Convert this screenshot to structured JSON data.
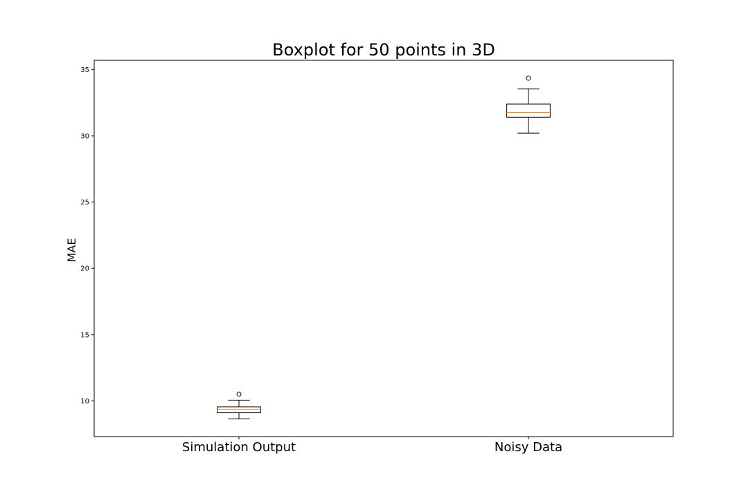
{
  "chart_data": {
    "type": "boxplot",
    "title": "Boxplot for 50 points in 3D",
    "xlabel": "",
    "ylabel": "MAE",
    "categories": [
      "Simulation Output",
      "Noisy Data"
    ],
    "ylim": [
      7.3,
      35.7
    ],
    "yticks": [
      10,
      15,
      20,
      25,
      30,
      35
    ],
    "grid": false,
    "boxes": [
      {
        "category": "Simulation Output",
        "whisker_low": 8.65,
        "q1": 9.1,
        "median": 9.35,
        "q3": 9.55,
        "whisker_high": 10.05,
        "outliers": [
          10.5
        ]
      },
      {
        "category": "Noisy Data",
        "whisker_low": 30.2,
        "q1": 31.4,
        "median": 31.75,
        "q3": 32.4,
        "whisker_high": 33.55,
        "outliers": [
          34.35
        ]
      }
    ],
    "colors": {
      "box": "#000000",
      "median": "#ff7f0e",
      "outlier": "#000000"
    }
  }
}
